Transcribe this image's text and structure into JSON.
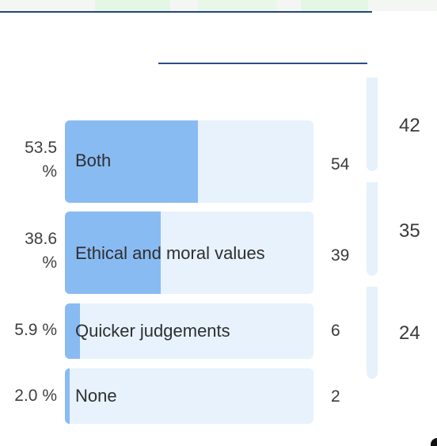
{
  "poll": {
    "options": [
      {
        "percent_line1": "53.5",
        "percent_line2": "%",
        "label": "Both",
        "votes": "54",
        "fraction": 0.535
      },
      {
        "percent_line1": "38.6",
        "percent_line2": "%",
        "label": "Ethical and moral values",
        "votes": "39",
        "fraction": 0.386
      },
      {
        "percent": "5.9 %",
        "label": "Quicker judgements",
        "votes": "6",
        "fraction": 0.059
      },
      {
        "percent": "2.0 %",
        "label": "None",
        "votes": "2",
        "fraction": 0.02
      }
    ]
  },
  "side_groups": [
    "42",
    "35",
    "24"
  ],
  "colors": {
    "bar_bg": "#e7f2fd",
    "bar_fill": "#89bbf3",
    "accent_line": "#25467a"
  }
}
